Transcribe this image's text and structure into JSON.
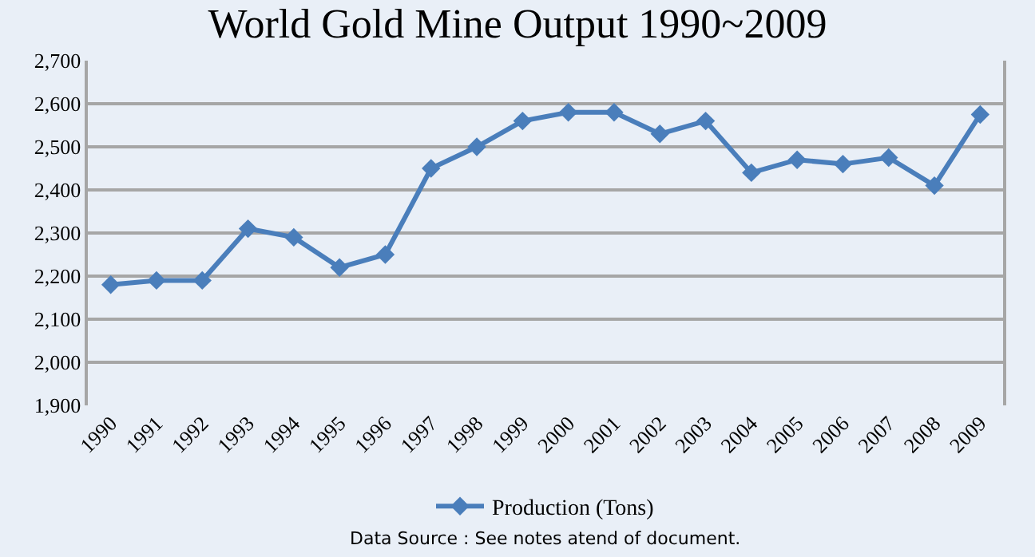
{
  "chart_data": {
    "type": "line",
    "title": "World Gold Mine Output 1990~2009",
    "categories": [
      "1990",
      "1991",
      "1992",
      "1993",
      "1994",
      "1995",
      "1996",
      "1997",
      "1998",
      "1999",
      "2000",
      "2001",
      "2002",
      "2003",
      "2004",
      "2005",
      "2006",
      "2007",
      "2008",
      "2009"
    ],
    "series": [
      {
        "name": "Production (Tons)",
        "color": "#4a7ebb",
        "values": [
          2180,
          2190,
          2190,
          2310,
          2290,
          2220,
          2250,
          2450,
          2500,
          2560,
          2580,
          2580,
          2530,
          2560,
          2440,
          2470,
          2460,
          2475,
          2410,
          2575
        ]
      }
    ],
    "ylim": [
      1900,
      2700
    ],
    "yticks": [
      {
        "value": 1900,
        "label": "1,900"
      },
      {
        "value": 2000,
        "label": "2,000"
      },
      {
        "value": 2100,
        "label": "2,100"
      },
      {
        "value": 2200,
        "label": "2,200"
      },
      {
        "value": 2300,
        "label": "2,300"
      },
      {
        "value": 2400,
        "label": "2,400"
      },
      {
        "value": 2500,
        "label": "2,500"
      },
      {
        "value": 2600,
        "label": "2,600"
      },
      {
        "value": 2700,
        "label": "2,700"
      }
    ],
    "grid": "y",
    "legend": "bottom",
    "marker": "diamond",
    "line_style": "solid",
    "annotations": [
      "Data Source : See notes atend of document."
    ]
  }
}
